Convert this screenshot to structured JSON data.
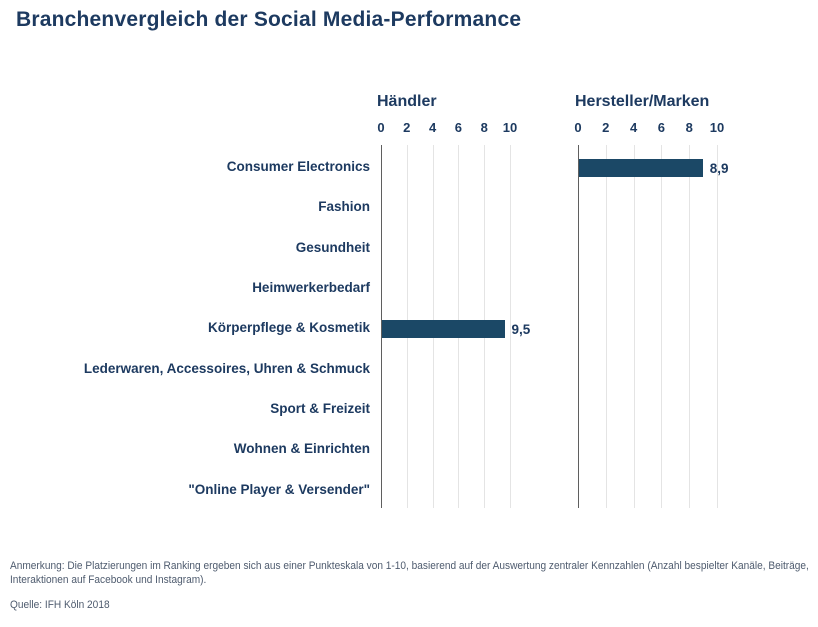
{
  "title": "Branchenvergleich der Social Media-Performance",
  "note": "Anmerkung: Die Platzierungen im Ranking ergeben sich aus einer Punkteskala von 1-10, basierend auf der Auswertung zentraler Kennzahlen (Anzahl bespielter Kanäle, Beiträge, Interaktionen auf Facebook und Instagram).",
  "source": "Quelle: IFH Köln 2018",
  "colors": {
    "text_navy": "#1d3a60",
    "bar_fill": "#1b4866",
    "gridline": "#e4e4e4",
    "axis_line": "#5f5f5f",
    "note_text": "#4e5b6e"
  },
  "chart_data": {
    "type": "bar",
    "orientation": "horizontal",
    "title": "Branchenvergleich der Social Media-Performance",
    "categories": [
      "Consumer Electronics",
      "Fashion",
      "Gesundheit",
      "Heimwerkerbedarf",
      "Körperpflege & Kosmetik",
      "Lederwaren, Accessoires, Uhren & Schmuck",
      "Sport & Freizeit",
      "Wohnen & Einrichten",
      "\"Online Player & Versender\""
    ],
    "xlim": [
      0,
      10
    ],
    "ticks": [
      "0",
      "2",
      "4",
      "6",
      "8",
      "10"
    ],
    "grid": "vertical gridlines every 2 units",
    "legend": "none",
    "bar_color": "#1b4866",
    "panels": [
      {
        "name": "Händler",
        "values": [
          null,
          null,
          null,
          null,
          9.5,
          null,
          null,
          null,
          null
        ],
        "bars": [
          {
            "category": "Körperpflege & Kosmetik",
            "value": 9.5,
            "label": "9,5"
          }
        ]
      },
      {
        "name": "Hersteller/Marken",
        "values": [
          8.9,
          null,
          null,
          null,
          null,
          null,
          null,
          null,
          null
        ],
        "bars": [
          {
            "category": "Consumer Electronics",
            "value": 8.9,
            "label": "8,9"
          }
        ]
      }
    ]
  }
}
